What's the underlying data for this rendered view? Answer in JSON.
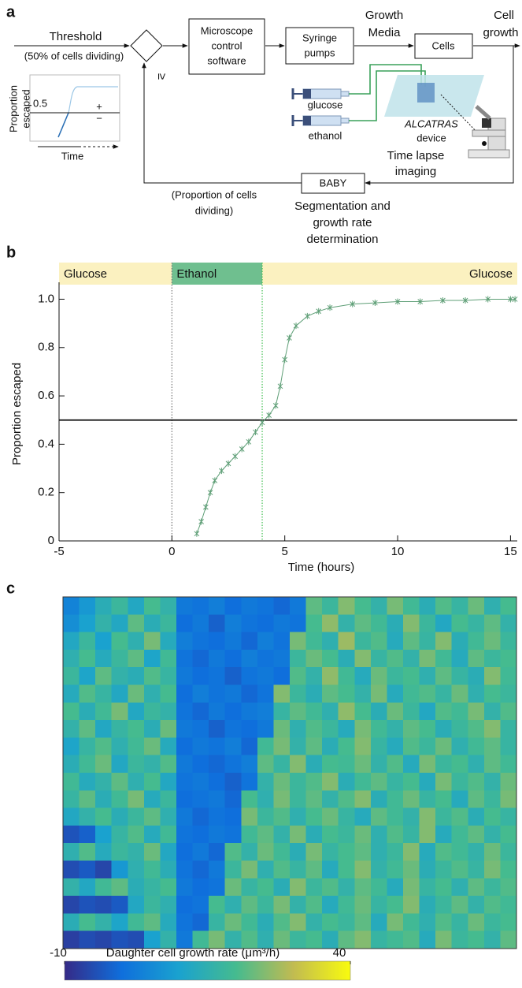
{
  "diagram": {
    "panel_label": "a",
    "threshold": {
      "label": "Threshold",
      "note": "(50% of cells dividing)"
    },
    "comparator": "≥",
    "nodes": [
      {
        "label": [
          "Microscope",
          "control",
          "software"
        ]
      },
      {
        "label": [
          "Syringe",
          "pumps"
        ]
      },
      {
        "label": [
          "Cells"
        ]
      },
      {
        "label": [
          "BABY"
        ]
      }
    ],
    "edges": {
      "media": [
        "Growth",
        "Media"
      ],
      "growth": [
        "Cell",
        "growth"
      ],
      "feedback": [
        "(Proportion of cells",
        "dividing)"
      ],
      "analysis": [
        "Segmentation and",
        "growth rate",
        "determination"
      ]
    },
    "inset": {
      "y_label": [
        "Proportion",
        "escaped"
      ],
      "threshold": "0.5",
      "above": "+",
      "below": "−",
      "x_label": "Time"
    },
    "device": {
      "inputs": [
        "glucose",
        "ethanol"
      ],
      "name": "ALCATRAS",
      "name_suffix": "device",
      "imaging": [
        "Time lapse",
        "imaging"
      ]
    }
  },
  "chart_data": [
    {
      "type": "line",
      "panel_label": "b",
      "x_label": "Time (hours)",
      "y_label": "Proportion escaped",
      "media_bands": [
        {
          "label": "Glucose",
          "start": -5,
          "end": 0,
          "color": "#fbf1c0"
        },
        {
          "label": "Ethanol",
          "start": 0,
          "end": 4,
          "color": "#6fbf8f"
        },
        {
          "label": "Glucose",
          "start": 4,
          "end": 15.3,
          "color": "#fbf1c0"
        }
      ],
      "threshold": 0.5,
      "series": [
        {
          "color": "#5f9f77",
          "x": [
            1.1,
            1.3,
            1.5,
            1.7,
            1.9,
            2.2,
            2.5,
            2.8,
            3.1,
            3.4,
            3.7,
            4.0,
            4.3,
            4.6,
            4.8,
            5.0,
            5.2,
            5.5,
            6.0,
            6.5,
            7.0,
            8.0,
            9.0,
            10.0,
            11.0,
            12.0,
            13.0,
            14.0,
            15.0,
            15.2
          ],
          "values": [
            0.03,
            0.08,
            0.14,
            0.2,
            0.25,
            0.29,
            0.32,
            0.35,
            0.38,
            0.41,
            0.45,
            0.49,
            0.52,
            0.56,
            0.64,
            0.75,
            0.84,
            0.89,
            0.93,
            0.95,
            0.965,
            0.98,
            0.985,
            0.99,
            0.99,
            0.995,
            0.995,
            1.0,
            1.0,
            1.0
          ]
        }
      ],
      "xlim": [
        -5,
        15.3
      ],
      "ylim": [
        0,
        1.07
      ],
      "xticks": [
        -5,
        0,
        5,
        10,
        15
      ],
      "yticks": [
        0,
        0.2,
        0.4,
        0.6,
        0.8,
        {
          "value": 1,
          "label": "1.0"
        }
      ]
    },
    {
      "type": "heatmap",
      "panel_label": "c",
      "colormap": [
        "#352a87",
        "#0f6fdc",
        "#1aa2cf",
        "#45bb8f",
        "#c1bb51",
        "#f9fb0e"
      ],
      "colorbar": {
        "label": "Daughter cell growth rate (μm³/h)",
        "lim": [
          -10,
          40
        ],
        "ticks": [
          -10,
          40
        ]
      },
      "values": [
        [
          4,
          8,
          14,
          18,
          12,
          20,
          16,
          2,
          1,
          3,
          0,
          2,
          1,
          -1,
          2,
          22,
          18,
          25,
          20,
          16,
          24,
          19,
          14,
          21,
          17,
          23,
          15,
          20
        ],
        [
          6,
          10,
          16,
          12,
          22,
          14,
          18,
          0,
          2,
          -2,
          3,
          1,
          0,
          2,
          1,
          20,
          26,
          16,
          22,
          19,
          14,
          25,
          18,
          12,
          20,
          17,
          22,
          16
        ],
        [
          12,
          18,
          10,
          20,
          15,
          24,
          13,
          3,
          1,
          0,
          2,
          -1,
          3,
          1,
          24,
          19,
          15,
          27,
          18,
          21,
          13,
          22,
          17,
          25,
          14,
          19,
          23,
          18
        ],
        [
          15,
          20,
          13,
          18,
          22,
          11,
          19,
          1,
          -1,
          2,
          0,
          3,
          1,
          2,
          18,
          23,
          20,
          14,
          25,
          17,
          21,
          16,
          24,
          19,
          13,
          22,
          18,
          20
        ],
        [
          18,
          11,
          22,
          16,
          14,
          21,
          17,
          2,
          0,
          1,
          -2,
          1,
          2,
          0,
          21,
          16,
          26,
          19,
          13,
          23,
          18,
          20,
          15,
          22,
          17,
          14,
          25,
          19
        ],
        [
          13,
          21,
          17,
          12,
          23,
          15,
          20,
          0,
          3,
          1,
          2,
          -1,
          1,
          25,
          18,
          14,
          22,
          20,
          16,
          24,
          13,
          19,
          21,
          17,
          23,
          15,
          20,
          18
        ],
        [
          20,
          14,
          19,
          24,
          12,
          18,
          16,
          1,
          -1,
          2,
          0,
          2,
          3,
          17,
          22,
          19,
          15,
          26,
          20,
          14,
          23,
          18,
          12,
          21,
          19,
          24,
          16,
          21
        ],
        [
          16,
          22,
          12,
          17,
          20,
          14,
          23,
          2,
          1,
          -2,
          1,
          0,
          2,
          23,
          15,
          21,
          18,
          13,
          24,
          19,
          16,
          22,
          20,
          14,
          18,
          21,
          25,
          17
        ],
        [
          11,
          17,
          21,
          15,
          19,
          23,
          13,
          0,
          2,
          1,
          3,
          -1,
          19,
          24,
          16,
          22,
          14,
          20,
          25,
          17,
          13,
          21,
          18,
          23,
          15,
          19,
          22,
          17
        ],
        [
          14,
          19,
          23,
          12,
          18,
          16,
          21,
          2,
          0,
          -1,
          1,
          3,
          22,
          17,
          25,
          14,
          20,
          19,
          23,
          16,
          21,
          13,
          24,
          18,
          20,
          15,
          22,
          19
        ],
        [
          19,
          13,
          16,
          22,
          15,
          20,
          12,
          1,
          2,
          0,
          -2,
          1,
          16,
          23,
          18,
          21,
          25,
          14,
          19,
          22,
          17,
          20,
          13,
          24,
          18,
          21,
          16,
          23
        ],
        [
          17,
          22,
          14,
          19,
          24,
          13,
          18,
          0,
          1,
          2,
          -1,
          20,
          15,
          24,
          18,
          22,
          16,
          21,
          25,
          14,
          19,
          23,
          17,
          20,
          13,
          22,
          18,
          24
        ],
        [
          12,
          16,
          20,
          14,
          18,
          22,
          15,
          2,
          -1,
          1,
          0,
          24,
          18,
          21,
          15,
          20,
          23,
          17,
          13,
          22,
          19,
          16,
          25,
          18,
          21,
          14,
          20,
          17
        ],
        [
          -4,
          -2,
          10,
          17,
          21,
          13,
          19,
          1,
          0,
          2,
          1,
          19,
          22,
          16,
          24,
          14,
          20,
          18,
          23,
          15,
          21,
          17,
          25,
          13,
          19,
          22,
          16,
          20
        ],
        [
          15,
          21,
          13,
          18,
          16,
          23,
          12,
          0,
          2,
          -1,
          21,
          16,
          23,
          19,
          14,
          24,
          17,
          20,
          22,
          15,
          18,
          25,
          13,
          21,
          19,
          16,
          23,
          18
        ],
        [
          -5,
          -3,
          -6,
          8,
          15,
          19,
          14,
          1,
          -1,
          2,
          18,
          24,
          15,
          21,
          17,
          22,
          13,
          20,
          25,
          16,
          19,
          23,
          14,
          18,
          21,
          17,
          24,
          20
        ],
        [
          16,
          12,
          19,
          22,
          14,
          17,
          20,
          2,
          0,
          1,
          23,
          17,
          20,
          14,
          25,
          18,
          21,
          16,
          22,
          19,
          13,
          24,
          17,
          20,
          15,
          22,
          18,
          21
        ],
        [
          -6,
          -4,
          -5,
          -3,
          12,
          18,
          15,
          0,
          1,
          20,
          15,
          22,
          18,
          24,
          16,
          21,
          13,
          19,
          23,
          17,
          20,
          25,
          14,
          18,
          22,
          16,
          21,
          19
        ],
        [
          14,
          20,
          16,
          11,
          19,
          22,
          13,
          1,
          -1,
          17,
          23,
          19,
          14,
          21,
          25,
          16,
          20,
          18,
          22,
          13,
          24,
          19,
          15,
          21,
          17,
          23,
          18,
          20
        ],
        [
          -7,
          -5,
          -6,
          -4,
          -5,
          10,
          16,
          2,
          19,
          24,
          16,
          21,
          15,
          23,
          18,
          20,
          14,
          22,
          25,
          17,
          19,
          21,
          13,
          24,
          18,
          20,
          16,
          22
        ]
      ]
    }
  ]
}
